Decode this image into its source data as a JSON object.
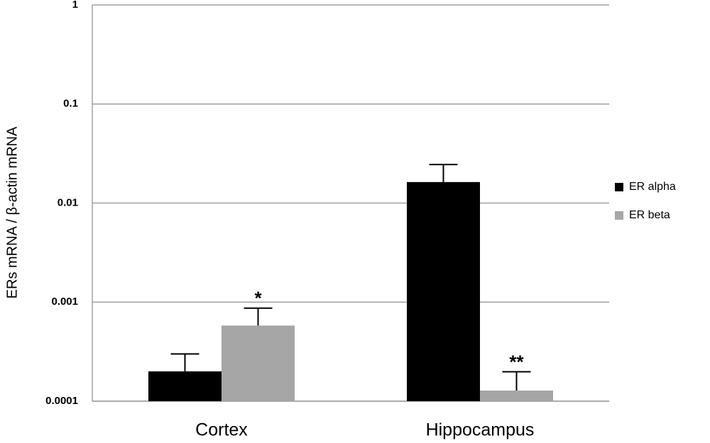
{
  "chart_data": {
    "type": "bar",
    "y_label": "ERs mRNA / β-actin mRNA",
    "categories": [
      "Cortex",
      "Hippocampus"
    ],
    "series": [
      {
        "name": "ER alpha",
        "color": "#000000",
        "values": [
          0.0002,
          0.0163
        ],
        "errors": [
          0.0001,
          0.0082
        ]
      },
      {
        "name": "ER beta",
        "color": "#a6a6a6",
        "values": [
          0.00058,
          0.000128
        ],
        "errors": [
          0.00029,
          7e-05
        ]
      }
    ],
    "annotations": [
      "*",
      "**"
    ],
    "ylim": [
      0.0001,
      1
    ],
    "yticks": [
      0.0001,
      0.001,
      0.01,
      0.1,
      1
    ],
    "log_y": true,
    "grid": true,
    "legend": "right"
  }
}
